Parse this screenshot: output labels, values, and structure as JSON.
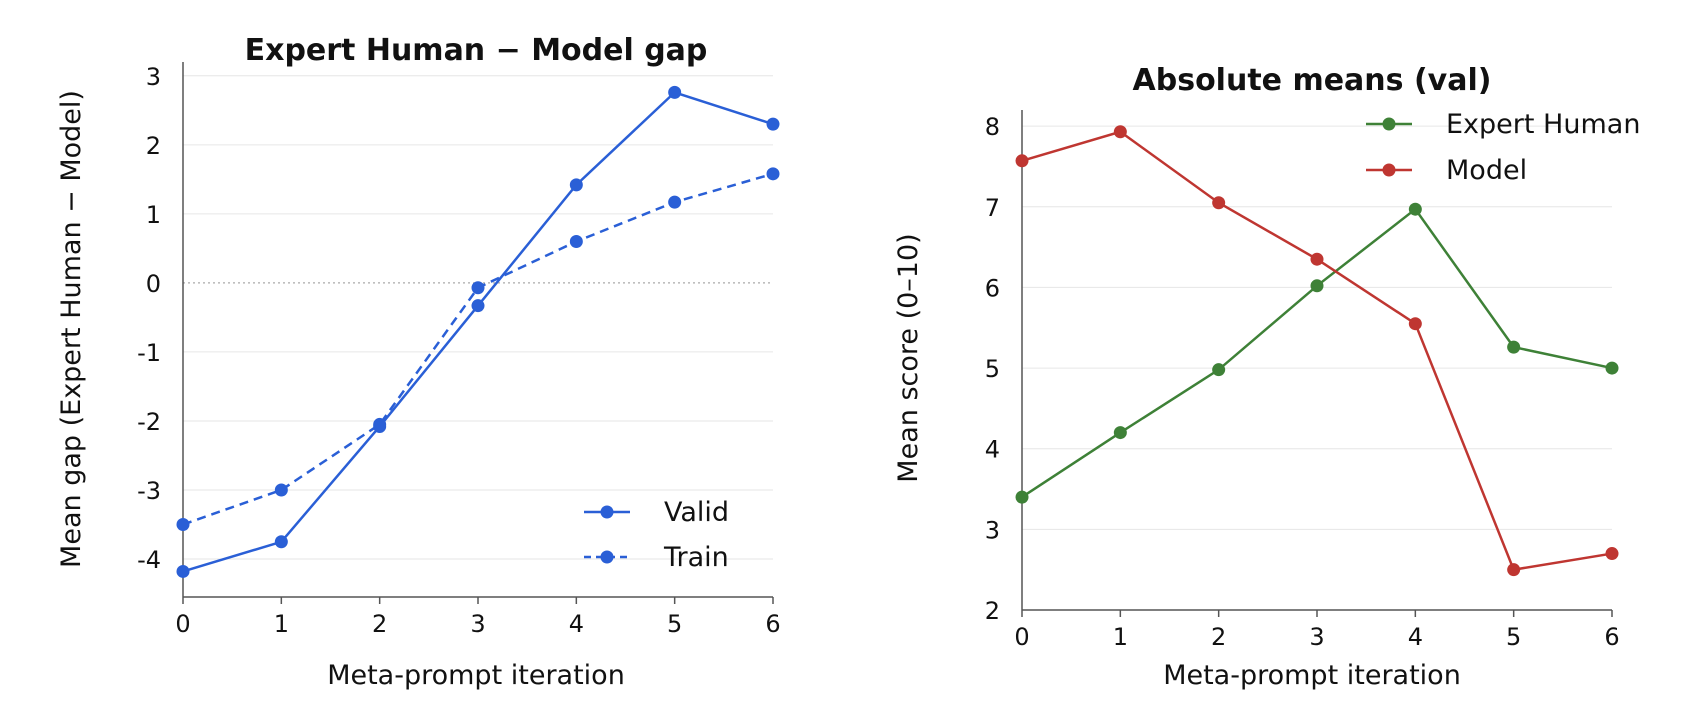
{
  "colors": {
    "valid": "#2a5fd6",
    "train": "#2a5fd6",
    "expert_human": "#3e8137",
    "model": "#bf3631"
  },
  "chart_data": [
    {
      "type": "line",
      "title": "Expert Human − Model gap",
      "xlabel": "Meta-prompt iteration",
      "ylabel": "Mean gap (Expert Human − Model)",
      "x": [
        0,
        1,
        2,
        3,
        4,
        5,
        6
      ],
      "x_ticks": [
        "0",
        "1",
        "2",
        "3",
        "4",
        "5",
        "6"
      ],
      "y_ticks": [
        "3",
        "2",
        "1",
        "0",
        "-1",
        "-2",
        "-3",
        "-4"
      ],
      "y_tick_values": [
        3,
        2,
        1,
        0,
        -1,
        -2,
        -3,
        -4
      ],
      "xlim": [
        0,
        6
      ],
      "ylim": [
        -4.55,
        3.2
      ],
      "grid": true,
      "zero_line": true,
      "legend_position": "bottom-right",
      "series": [
        {
          "name": "Valid",
          "style": "solid",
          "color_key": "valid",
          "values": [
            -4.18,
            -3.75,
            -2.08,
            -0.33,
            1.42,
            2.76,
            2.3
          ]
        },
        {
          "name": "Train",
          "style": "dashed",
          "color_key": "train",
          "values": [
            -3.5,
            -3.0,
            -2.05,
            -0.07,
            0.6,
            1.17,
            1.58
          ]
        }
      ]
    },
    {
      "type": "line",
      "title": "Absolute means (val)",
      "xlabel": "Meta-prompt iteration",
      "ylabel": "Mean score (0–10)",
      "x": [
        0,
        1,
        2,
        3,
        4,
        5,
        6
      ],
      "x_ticks": [
        "0",
        "1",
        "2",
        "3",
        "4",
        "5",
        "6"
      ],
      "y_ticks": [
        "8",
        "7",
        "6",
        "5",
        "4",
        "3",
        "2"
      ],
      "y_tick_values": [
        8,
        7,
        6,
        5,
        4,
        3,
        2
      ],
      "xlim": [
        0,
        6
      ],
      "ylim": [
        2,
        8.2
      ],
      "grid": true,
      "legend_position": "top-right",
      "series": [
        {
          "name": "Expert Human",
          "style": "solid",
          "color_key": "expert_human",
          "values": [
            3.4,
            4.2,
            4.98,
            6.02,
            6.97,
            5.26,
            5.0
          ]
        },
        {
          "name": "Model",
          "style": "solid",
          "color_key": "model",
          "values": [
            7.57,
            7.93,
            7.05,
            6.35,
            5.55,
            2.5,
            2.7
          ]
        }
      ]
    }
  ]
}
